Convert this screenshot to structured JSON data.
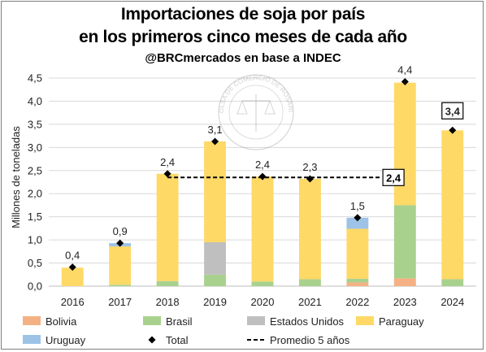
{
  "title_line1": "Importaciones de soja por país",
  "title_line2": "en los primeros cinco meses de cada año",
  "subtitle": "@BRCmercados en base a INDEC",
  "watermark": "BOLSA DE COMERCIO DE ROSARIO",
  "chart_data": {
    "type": "bar",
    "stacked": true,
    "ylabel": "Millones de toneladas",
    "ylim": [
      0,
      4.5
    ],
    "ytick_step": 0.5,
    "y_tick_labels": [
      "0,0",
      "0,5",
      "1,0",
      "1,5",
      "2,0",
      "2,5",
      "3,0",
      "3,5",
      "4,0",
      "4,5"
    ],
    "grid": true,
    "legend_position": "bottom",
    "categories": [
      "2016",
      "2017",
      "2018",
      "2019",
      "2020",
      "2021",
      "2022",
      "2023",
      "2024"
    ],
    "series": [
      {
        "name": "Bolivia",
        "color": "#f4b183",
        "values": [
          0,
          0,
          0,
          0,
          0,
          0,
          0.08,
          0.17,
          0
        ]
      },
      {
        "name": "Brasil",
        "color": "#a9d18e",
        "values": [
          0,
          0.03,
          0.11,
          0.25,
          0.1,
          0.15,
          0.08,
          1.58,
          0.15
        ]
      },
      {
        "name": "Estados Unidos",
        "color": "#bfbfbf",
        "values": [
          0,
          0,
          0,
          0.7,
          0,
          0,
          0,
          0,
          0
        ]
      },
      {
        "name": "Paraguay",
        "color": "#ffd966",
        "values": [
          0.4,
          0.83,
          2.32,
          2.18,
          2.27,
          2.17,
          1.08,
          2.65,
          3.22
        ]
      },
      {
        "name": "Uruguay",
        "color": "#9dc3e6",
        "values": [
          0,
          0.07,
          0,
          0,
          0,
          0,
          0.24,
          0,
          0
        ]
      }
    ],
    "total": {
      "name": "Total",
      "values": [
        0.41,
        0.93,
        2.43,
        3.13,
        2.37,
        2.32,
        1.48,
        4.42,
        3.37
      ],
      "labels": [
        "0,4",
        "0,9",
        "2,4",
        "3,1",
        "2,4",
        "2,3",
        "1,5",
        "4,4",
        "3,4"
      ],
      "boxed_label_index": 8
    },
    "average": {
      "name": "Promedio 5 años",
      "value": 2.35,
      "label": "2,4",
      "from_category": "2018",
      "to_category": "2022"
    }
  }
}
